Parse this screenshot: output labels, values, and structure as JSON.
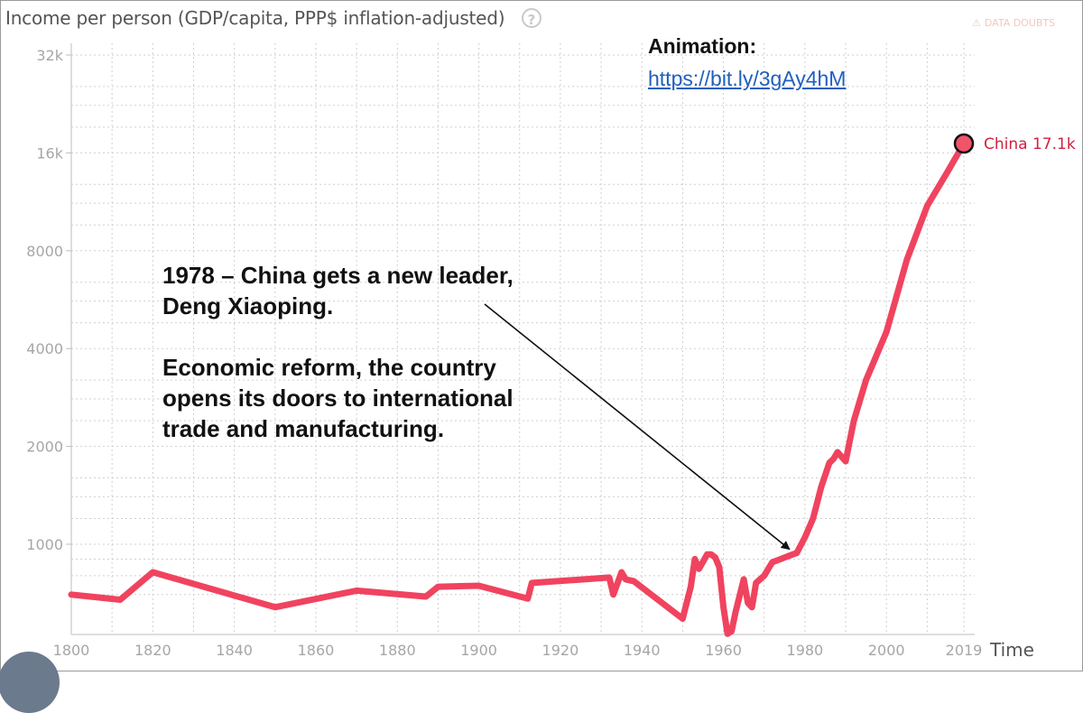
{
  "header": {
    "title": "Income per person (GDP/capita, PPP$ inflation-adjusted)",
    "help_icon": "question-circle-icon",
    "data_doubts_label": "DATA DOUBTS",
    "data_doubts_icon": "warning-triangle-icon"
  },
  "animation": {
    "label": "Animation:",
    "link_text": "https://bit.ly/3gAy4hM"
  },
  "annotation": {
    "line1": "1978 – China gets a new leader,",
    "line2": "Deng Xiaoping.",
    "line3": "Economic reform, the country",
    "line4": "opens its doors to international",
    "line5": "trade and manufacturing.",
    "arrow_target_year": 1978
  },
  "colors": {
    "series": "#f0435f",
    "marker_fill": "#f0546b",
    "grid": "#cfcfcf",
    "axis_text": "#a6a6a6",
    "label": "#d0203f"
  },
  "chart_data": {
    "type": "line",
    "xlabel": "Time",
    "ylabel": "",
    "yscale": "log",
    "xlim": [
      1800,
      2019
    ],
    "ylim": [
      500,
      32000
    ],
    "x_ticks": [
      "1800",
      "1820",
      "1840",
      "1860",
      "1880",
      "1900",
      "1920",
      "1940",
      "1960",
      "1980",
      "2000",
      "2019"
    ],
    "y_ticks": [
      {
        "value": 1000,
        "label": "1000"
      },
      {
        "value": 2000,
        "label": "2000"
      },
      {
        "value": 4000,
        "label": "4000"
      },
      {
        "value": 8000,
        "label": "8000"
      },
      {
        "value": 16000,
        "label": "16k"
      },
      {
        "value": 32000,
        "label": "32k"
      }
    ],
    "grid": true,
    "series": [
      {
        "name": "China",
        "end_label": "China 17.1k",
        "x": [
          1800,
          1812,
          1820,
          1850,
          1870,
          1887,
          1890,
          1900,
          1912,
          1913,
          1932,
          1933,
          1935,
          1936,
          1938,
          1950,
          1952,
          1953,
          1954,
          1956,
          1957,
          1958,
          1959,
          1960,
          1961,
          1962,
          1963,
          1965,
          1966,
          1967,
          1968,
          1970,
          1972,
          1974,
          1976,
          1978,
          1980,
          1982,
          1984,
          1986,
          1987,
          1988,
          1990,
          1992,
          1995,
          2000,
          2005,
          2010,
          2015,
          2019
        ],
        "y": [
          700,
          675,
          820,
          640,
          720,
          690,
          740,
          745,
          680,
          760,
          790,
          700,
          820,
          780,
          770,
          590,
          740,
          900,
          840,
          930,
          930,
          910,
          850,
          640,
          530,
          540,
          620,
          780,
          660,
          640,
          760,
          800,
          880,
          900,
          920,
          940,
          1050,
          1200,
          1500,
          1780,
          1830,
          1920,
          1800,
          2400,
          3200,
          4500,
          7500,
          11000,
          14000,
          17100
        ]
      }
    ]
  }
}
